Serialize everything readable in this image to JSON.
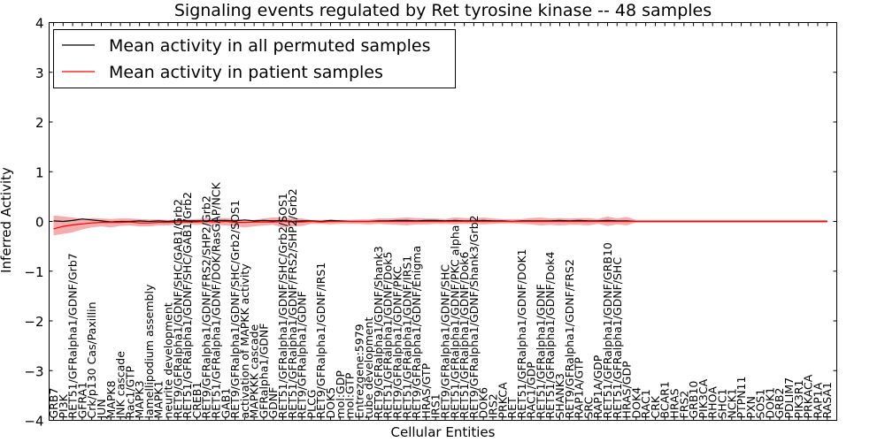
{
  "chart_data": {
    "type": "line",
    "title": "Signaling events regulated by Ret tyrosine kinase -- 48 samples",
    "xlabel": "Cellular Entities",
    "ylabel": "Inferred Activity",
    "ylim": [
      -4,
      4
    ],
    "yticks": [
      -4,
      -3,
      -2,
      -1,
      0,
      1,
      2,
      3,
      4
    ],
    "categories": [
      "GRB7",
      "PI3K",
      "RET51/GFRalpha1/GDNF/Grb7",
      "GFRA1",
      "Crk/p130 Cas/Paxillin",
      "JUN",
      "MAPK8",
      "JNK cascade",
      "Rac1/GTP",
      "MAPK3",
      "lamellipodium assembly",
      "MAPK1",
      "neurite development",
      "RET9/GFRalpha1/GDNF/SHC/GAB1/Grb2",
      "RET51/GFRalpha1/GDNF/SHC/GAB1/Grb2",
      "CREB1",
      "RET9/GFRalpha1/GDNF/FRS2/SHP2/Grb2",
      "RET51/GFRalpha1/GDNF/DOK/RasGAP/NCK",
      "GAB1",
      "RET9/GFRalpha1/GDNF/SHC/Grb2/SOS1",
      "activation of MAPKK activity",
      "MAPKKK cascade",
      "GFRalpha1/GDNF",
      "GDNF",
      "RET51/GFRalpha1/GDNF/SHC/Grb2/SOS1",
      "RET51/GFRalpha1/GDNF/FRS2/SHP2/Grb2",
      "RET9/GFRalpha1/GDNF",
      "PLCG",
      "RET9/GFRalpha1/GDNF/IRS1",
      "DOK5",
      "mol:GDP",
      "mol:GTP",
      "Entrezgene:5979",
      "tube development",
      "RET9/GFRalpha1/GDNF/Shank3",
      "RET51/GFRalpha1/GDNF/Dok5",
      "RET9/GFRalpha1/GDNF/PKC",
      "RET51/GFRalpha1/GDNF/IRS1",
      "RET9/GFRalpha1/GDNF/Enigma",
      "HRAS/GTP",
      "IRS1",
      "RET9/GFRalpha1/GDNF/SHC",
      "RET51/GFRalpha1/GDNF/PKC alpha",
      "RET51/GFRalpha1/GDNF/Dok6",
      "RET9/GFRalpha1/GDNF/Shank3/Grb2",
      "DOK6",
      "IRS2",
      "PRKCA",
      "RET",
      "RET51/GFRalpha1/GDNF/DOK1",
      "RAC1/GDP",
      "RET51/GFRalpha1/GDNF",
      "RET51/GFRalpha1/GDNF/Dok4",
      "SHANK3",
      "RET9/GFRalpha1/GDNF/FRS2",
      "RAP1A/GTP",
      "SRC",
      "RAP1A/GDP",
      "RET51/GFRalpha1/GDNF/GRB10",
      "RET51/GFRalpha1/GDNF/SHC",
      "HRAS/GDP",
      "DOK4",
      "RAC1",
      "CRK",
      "BCAR1",
      "HRAS",
      "FRS2",
      "GRB10",
      "PIK3CA",
      "RHOA",
      "SHC1",
      "NCK1",
      "PTPN11",
      "PXN",
      "SOS1",
      "DOK1",
      "GRB2",
      "PDLIM7",
      "PIK3R1",
      "PRKACA",
      "RAP1A",
      "RASA1"
    ],
    "series": [
      {
        "name": "Mean activity in all permuted samples",
        "color": "#000000",
        "values": [
          0.01,
          0.0,
          0.02,
          0.05,
          0.03,
          0.01,
          -0.01,
          0.0,
          0.0,
          0.01,
          0.0,
          0.01,
          0.0,
          0.02,
          0.01,
          0.01,
          0.01,
          0.02,
          0.02,
          0.01,
          0.03,
          0.01,
          0.02,
          0.01,
          0.02,
          0.0,
          0.01,
          0.01,
          0.0,
          0.02,
          0.01,
          0.0,
          0.0,
          0.0,
          0.01,
          0.01,
          0.02,
          0.02,
          0.01,
          0.02,
          0.02,
          0.01,
          0.02,
          0.01,
          0.01,
          0.02,
          0.01,
          0.01,
          0.0,
          0.01,
          0.01,
          0.01,
          0.01,
          0.02,
          0.01,
          0.02,
          0.01,
          0.01,
          0.02,
          0.01,
          0.01,
          0.0,
          0.0,
          0.0,
          0.0,
          0.0,
          0.0,
          0.0,
          0.0,
          0.0,
          0.0,
          0.0,
          0.0,
          0.0,
          0.0,
          0.0,
          0.0,
          0.0,
          0.0,
          0.0,
          0.0,
          0.0
        ]
      },
      {
        "name": "Mean activity in patient samples",
        "color": "#ff0000",
        "values": [
          -0.15,
          -0.1,
          -0.07,
          -0.05,
          -0.03,
          -0.02,
          -0.02,
          -0.02,
          -0.01,
          -0.03,
          -0.03,
          -0.02,
          -0.02,
          -0.01,
          -0.01,
          -0.01,
          0.0,
          -0.01,
          0.0,
          -0.02,
          -0.02,
          -0.01,
          -0.01,
          -0.01,
          0.0,
          -0.01,
          -0.01,
          0.0,
          -0.01,
          0.0,
          0.0,
          0.0,
          0.0,
          0.0,
          0.0,
          0.0,
          0.0,
          0.0,
          0.0,
          0.0,
          0.0,
          0.0,
          0.0,
          0.0,
          0.0,
          0.0,
          0.0,
          0.0,
          0.0,
          0.0,
          0.0,
          0.0,
          0.0,
          0.0,
          0.0,
          0.0,
          0.0,
          0.0,
          0.0,
          0.0,
          0.0,
          0.0,
          0.0,
          0.0,
          0.0,
          0.0,
          0.0,
          0.0,
          0.0,
          0.0,
          0.0,
          0.0,
          0.0,
          0.0,
          0.0,
          0.0,
          0.0,
          0.0,
          0.0,
          0.0,
          0.0,
          0.0
        ]
      }
    ],
    "band_upper": [
      0.12,
      0.1,
      0.08,
      0.05,
      0.07,
      0.06,
      0.05,
      0.06,
      0.06,
      0.05,
      0.04,
      0.04,
      0.03,
      0.04,
      0.04,
      0.05,
      0.06,
      0.06,
      0.07,
      0.05,
      0.03,
      0.03,
      0.06,
      0.08,
      0.08,
      0.06,
      0.06,
      0.03,
      0.03,
      0.04,
      0.03,
      0.03,
      0.04,
      0.04,
      0.06,
      0.06,
      0.07,
      0.08,
      0.07,
      0.06,
      0.06,
      0.05,
      0.08,
      0.07,
      0.06,
      0.08,
      0.06,
      0.05,
      0.05,
      0.05,
      0.07,
      0.08,
      0.06,
      0.07,
      0.06,
      0.07,
      0.07,
      0.05,
      0.1,
      0.06,
      0.09,
      0.03,
      0.03,
      0.03,
      0.03,
      0.03,
      0.03,
      0.03,
      0.03,
      0.03,
      0.03,
      0.03,
      0.03,
      0.03,
      0.03,
      0.03,
      0.03,
      0.03,
      0.03,
      0.03,
      0.03,
      0.03
    ],
    "band_lower": [
      -0.28,
      -0.25,
      -0.22,
      -0.16,
      -0.12,
      -0.1,
      -0.12,
      -0.09,
      -0.08,
      -0.1,
      -0.1,
      -0.08,
      -0.08,
      -0.06,
      -0.06,
      -0.07,
      -0.06,
      -0.07,
      -0.08,
      -0.1,
      -0.12,
      -0.1,
      -0.08,
      -0.07,
      -0.12,
      -0.1,
      -0.09,
      -0.05,
      -0.05,
      -0.06,
      -0.05,
      -0.05,
      -0.05,
      -0.06,
      -0.05,
      -0.06,
      -0.07,
      -0.08,
      -0.06,
      -0.06,
      -0.05,
      -0.05,
      -0.06,
      -0.05,
      -0.05,
      -0.06,
      -0.05,
      -0.04,
      -0.04,
      -0.05,
      -0.06,
      -0.08,
      -0.07,
      -0.08,
      -0.07,
      -0.07,
      -0.08,
      -0.05,
      -0.09,
      -0.06,
      -0.08,
      -0.02,
      -0.02,
      -0.02,
      -0.02,
      -0.02,
      -0.02,
      -0.02,
      -0.02,
      -0.02,
      -0.02,
      -0.02,
      -0.02,
      -0.02,
      -0.02,
      -0.02,
      -0.02,
      -0.02,
      -0.02,
      -0.02,
      -0.02,
      -0.02
    ],
    "legend_position": "top-left",
    "grid": false
  }
}
